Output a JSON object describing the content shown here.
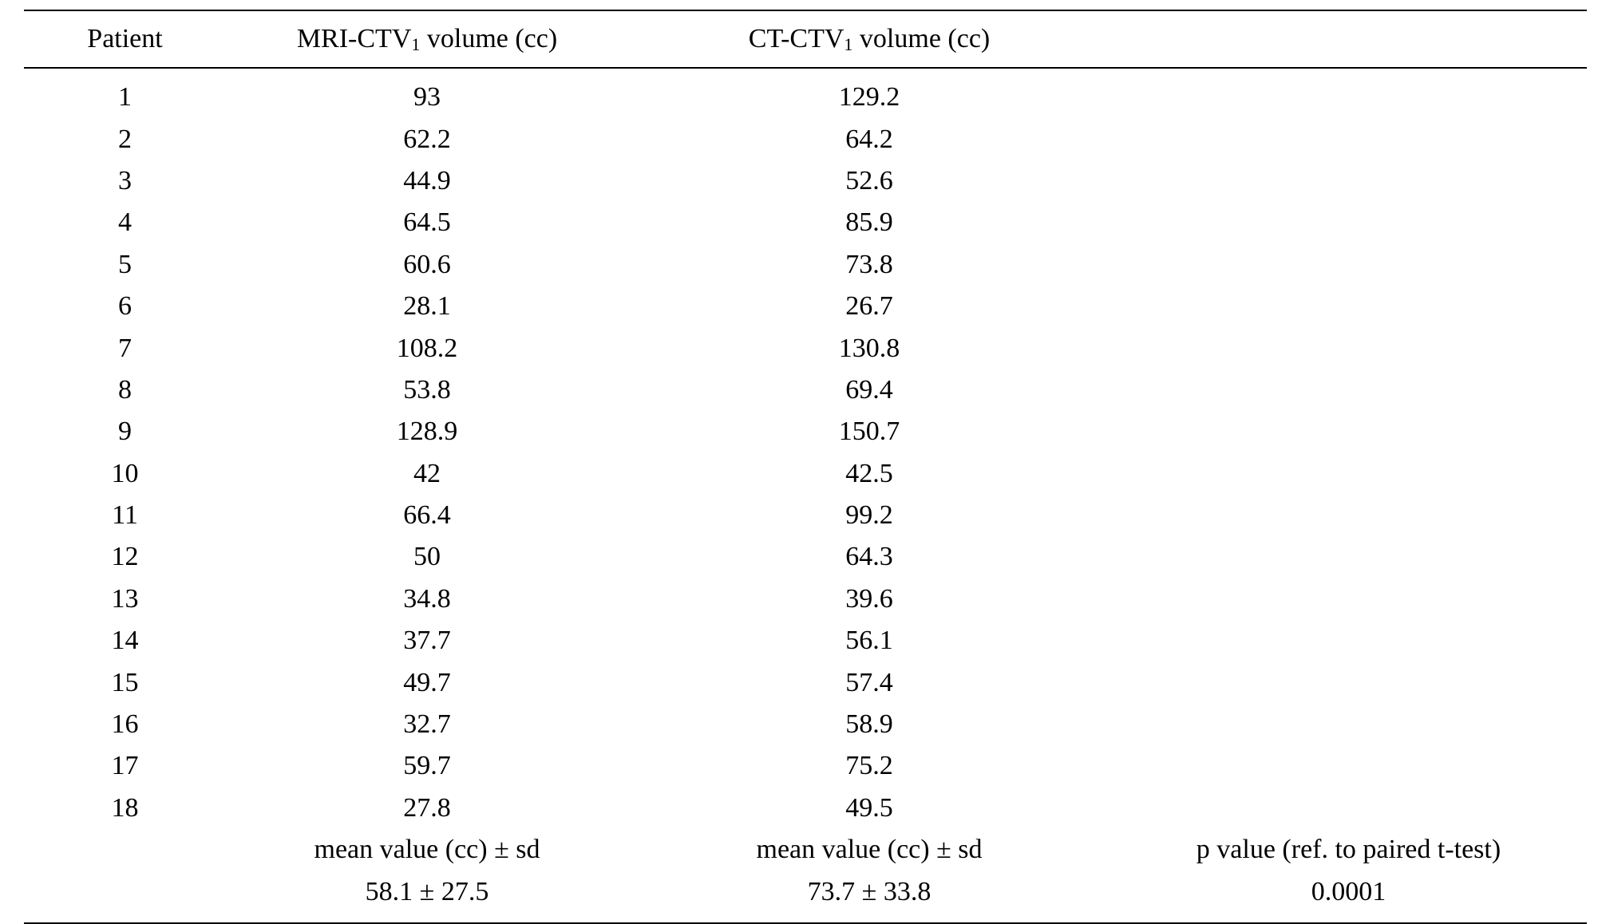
{
  "table": {
    "headers": {
      "patient": "Patient",
      "mri": {
        "pre": "MRI-CTV",
        "sub": "1",
        "post": " volume (cc)"
      },
      "ct": {
        "pre": "CT-CTV",
        "sub": "1",
        "post": " volume (cc)"
      },
      "extra": ""
    },
    "rows": [
      {
        "patient": "1",
        "mri": "93",
        "ct": "129.2"
      },
      {
        "patient": "2",
        "mri": "62.2",
        "ct": "64.2"
      },
      {
        "patient": "3",
        "mri": "44.9",
        "ct": "52.6"
      },
      {
        "patient": "4",
        "mri": "64.5",
        "ct": "85.9"
      },
      {
        "patient": "5",
        "mri": "60.6",
        "ct": "73.8"
      },
      {
        "patient": "6",
        "mri": "28.1",
        "ct": "26.7"
      },
      {
        "patient": "7",
        "mri": "108.2",
        "ct": "130.8"
      },
      {
        "patient": "8",
        "mri": "53.8",
        "ct": "69.4"
      },
      {
        "patient": "9",
        "mri": "128.9",
        "ct": "150.7"
      },
      {
        "patient": "10",
        "mri": "42",
        "ct": "42.5"
      },
      {
        "patient": "11",
        "mri": "66.4",
        "ct": "99.2"
      },
      {
        "patient": "12",
        "mri": "50",
        "ct": "64.3"
      },
      {
        "patient": "13",
        "mri": "34.8",
        "ct": "39.6"
      },
      {
        "patient": "14",
        "mri": "37.7",
        "ct": "56.1"
      },
      {
        "patient": "15",
        "mri": "49.7",
        "ct": "57.4"
      },
      {
        "patient": "16",
        "mri": "32.7",
        "ct": "58.9"
      },
      {
        "patient": "17",
        "mri": "59.7",
        "ct": "75.2"
      },
      {
        "patient": "18",
        "mri": "27.8",
        "ct": "49.5"
      }
    ],
    "summary": {
      "labels": {
        "mri": "mean value (cc) ± sd",
        "ct": "mean value (cc) ± sd",
        "p": "p value (ref. to paired t-test)"
      },
      "values": {
        "mri": "58.1 ± 27.5",
        "ct": "73.7 ± 33.8",
        "p": "0.0001"
      }
    }
  }
}
